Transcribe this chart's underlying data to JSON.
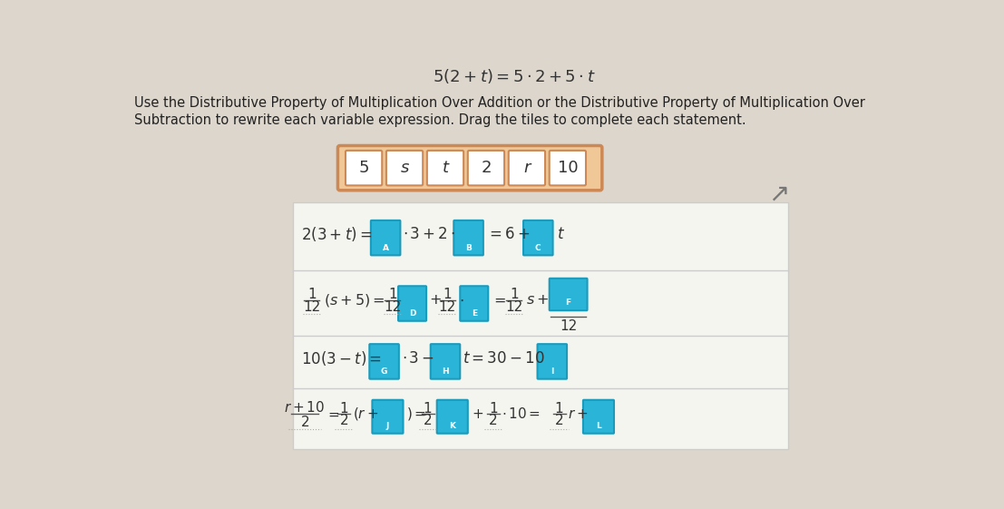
{
  "title": "5(2 + t) = 5 · 2 + 5 · t",
  "instruction_line1": "Use the Distributive Property of Multiplication Over Addition or the Distributive Property of Multiplication Over",
  "instruction_line2": "Subtraction to rewrite each variable expression. Drag the tiles to complete each statement.",
  "tiles": [
    "5",
    "s",
    "t",
    "2",
    "r",
    "10"
  ],
  "tile_bg": "#f0c898",
  "tile_border": "#cc8855",
  "blue_tile": "#2ab5d8",
  "blue_tile_dark": "#1a9bbc",
  "background": "#ddd6cc",
  "white_box": "#f5f5f0",
  "box_border": "#cccccc",
  "text_dark": "#333333",
  "text_black": "#222222"
}
